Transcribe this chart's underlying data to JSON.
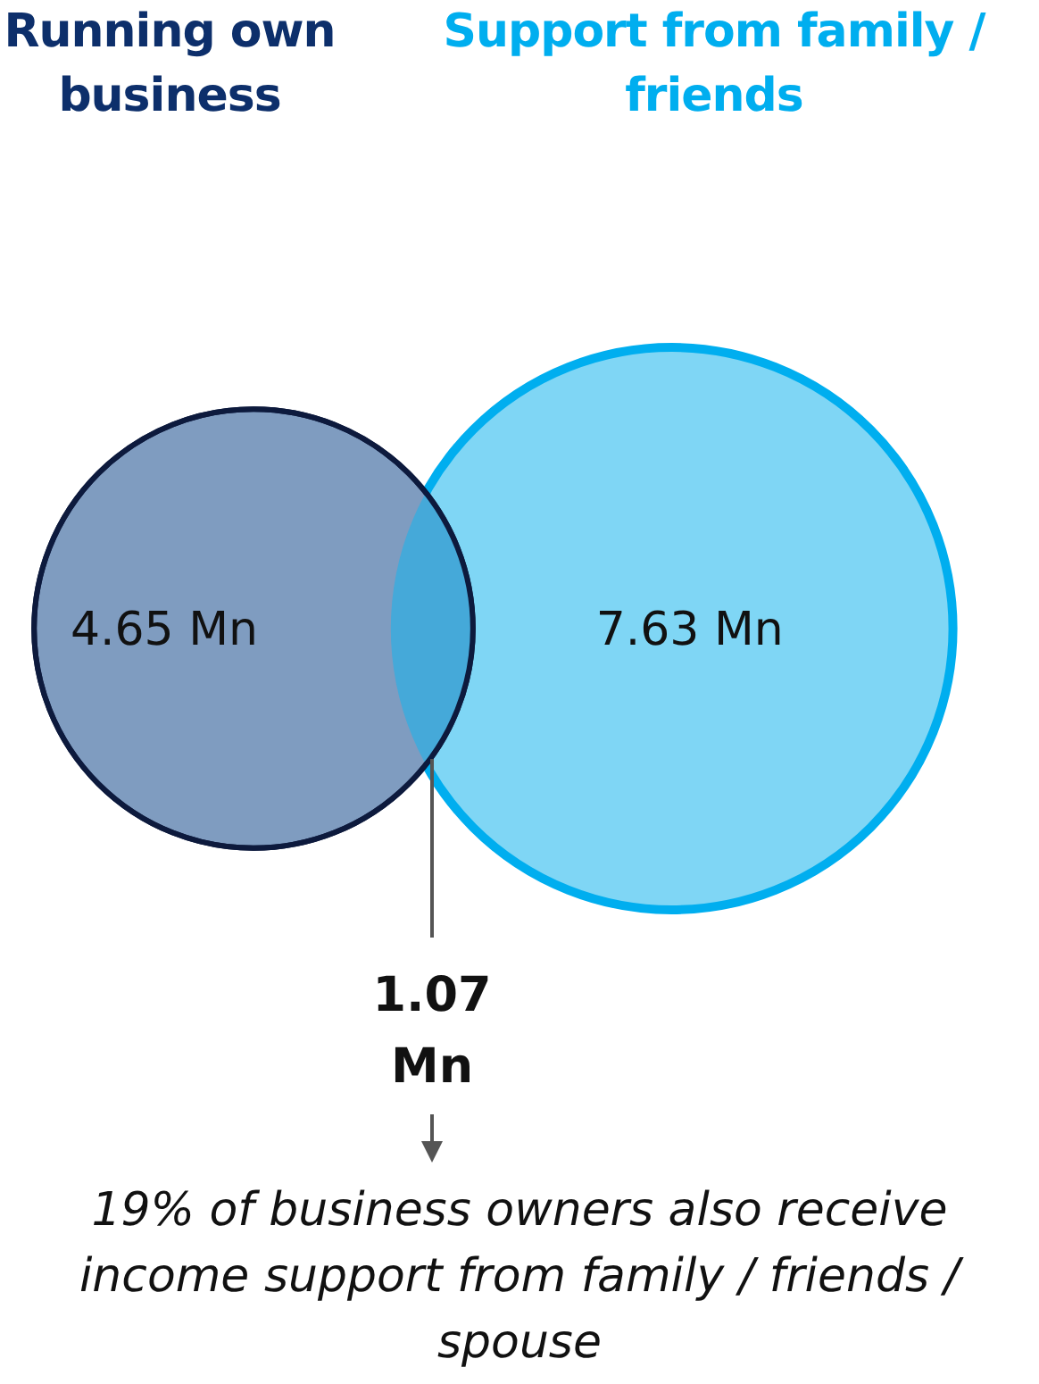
{
  "chart_data": {
    "type": "other",
    "categories": [
      "Running own business",
      "Support from family / friends",
      null
    ],
    "values": [
      4.65,
      7.63,
      1.07
    ],
    "value_labels": [
      "4.65 Mn",
      "7.63 Mn",
      "1.07 Mn"
    ],
    "colors": [
      "#7f9cc0",
      "#7fd6f5",
      "#45a9d9"
    ],
    "annotations": [
      "19% of business owners also receive income support from family / friends / spouse"
    ]
  }
}
